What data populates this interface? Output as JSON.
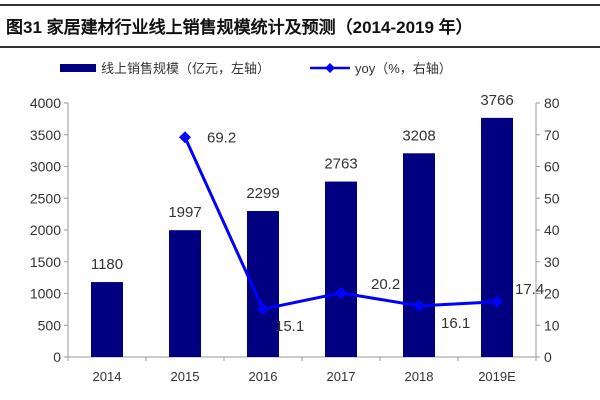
{
  "chart_data": {
    "type": "bar+line",
    "title": "图31 家居建材行业线上销售规模统计及预测（2014-2019 年）",
    "categories": [
      "2014",
      "2015",
      "2016",
      "2017",
      "2018",
      "2019E"
    ],
    "series": [
      {
        "name": "线上销售规模（亿元，左轴）",
        "type": "bar",
        "axis": "left",
        "color": "#000080",
        "values": [
          1180,
          1997,
          2299,
          2763,
          3208,
          3766
        ],
        "labels": [
          "1180",
          "1997",
          "2299",
          "2763",
          "3208",
          "3766"
        ]
      },
      {
        "name": "yoy（%，右轴）",
        "type": "line",
        "axis": "right",
        "color": "#0000FF",
        "values": [
          null,
          69.2,
          15.1,
          20.2,
          16.1,
          17.4
        ],
        "labels": [
          "",
          "69.2",
          "15.1",
          "20.2",
          "16.1",
          "17.4"
        ]
      }
    ],
    "left_axis": {
      "ylim": [
        0,
        4000
      ],
      "ticks": [
        "0",
        "500",
        "1000",
        "1500",
        "2000",
        "2500",
        "3000",
        "3500",
        "4000"
      ]
    },
    "right_axis": {
      "ylim": [
        0,
        80
      ],
      "ticks": [
        "0",
        "10",
        "20",
        "30",
        "40",
        "50",
        "60",
        "70",
        "80"
      ]
    },
    "legend": "top",
    "grid": false
  }
}
